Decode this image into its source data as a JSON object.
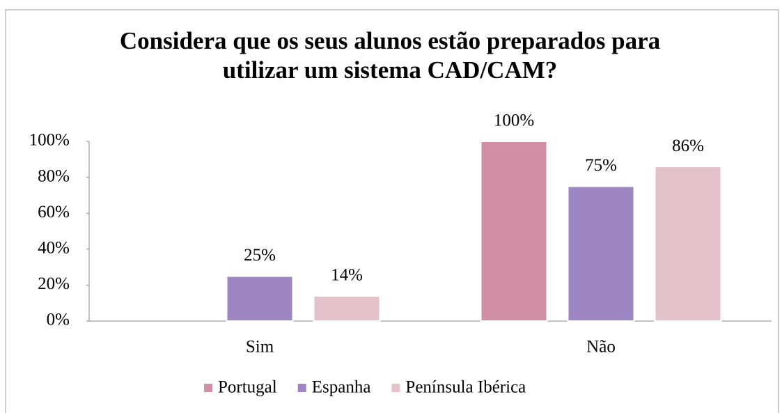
{
  "chart_data": {
    "type": "bar",
    "title": "Considera que os seus alunos estão preparados para utilizar um sistema CAD/CAM?",
    "categories": [
      "Sim",
      "Não"
    ],
    "series": [
      {
        "name": "Portugal",
        "color": "#d08fa4",
        "values": [
          null,
          100
        ],
        "value_labels": [
          null,
          "100%"
        ]
      },
      {
        "name": "Espanha",
        "color": "#9e86c2",
        "values": [
          25,
          75
        ],
        "value_labels": [
          "25%",
          "75%"
        ]
      },
      {
        "name": "Península Ibérica",
        "color": "#e4c2cc",
        "values": [
          14,
          86
        ],
        "value_labels": [
          "14%",
          "86%"
        ]
      }
    ],
    "ylim": [
      0,
      100
    ],
    "yticks": [
      {
        "value": 0,
        "label": "0%"
      },
      {
        "value": 20,
        "label": "20%"
      },
      {
        "value": 40,
        "label": "40%"
      },
      {
        "value": 60,
        "label": "60%"
      },
      {
        "value": 80,
        "label": "80%"
      },
      {
        "value": 100,
        "label": "100%"
      }
    ],
    "legend": "bottom"
  }
}
